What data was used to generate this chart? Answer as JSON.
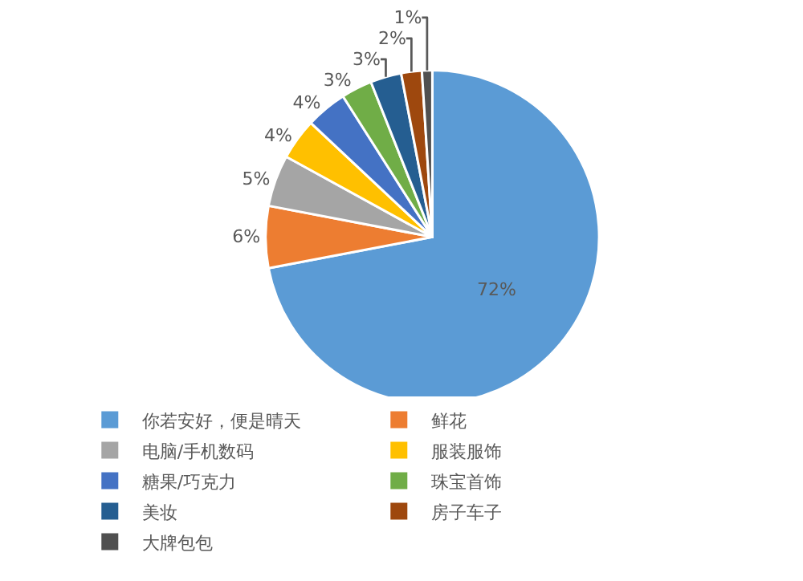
{
  "chart_data": {
    "type": "pie",
    "categories": [
      "你若安好，便是晴天",
      "鲜花",
      "电脑/手机数码",
      "服装服饰",
      "糖果/巧克力",
      "珠宝首饰",
      "美妆",
      "房子车子",
      "大牌包包"
    ],
    "values": [
      72,
      6,
      5,
      4,
      4,
      3,
      3,
      2,
      1
    ],
    "colors": [
      "#5b9bd5",
      "#ed7d31",
      "#a5a5a5",
      "#ffc000",
      "#4472c4",
      "#70ad47",
      "#255e91",
      "#9e480e",
      "#505050"
    ],
    "value_labels": [
      "72%",
      "6%",
      "5%",
      "4%",
      "4%",
      "3%",
      "3%",
      "2%",
      "1%"
    ],
    "legend": "bottom"
  }
}
